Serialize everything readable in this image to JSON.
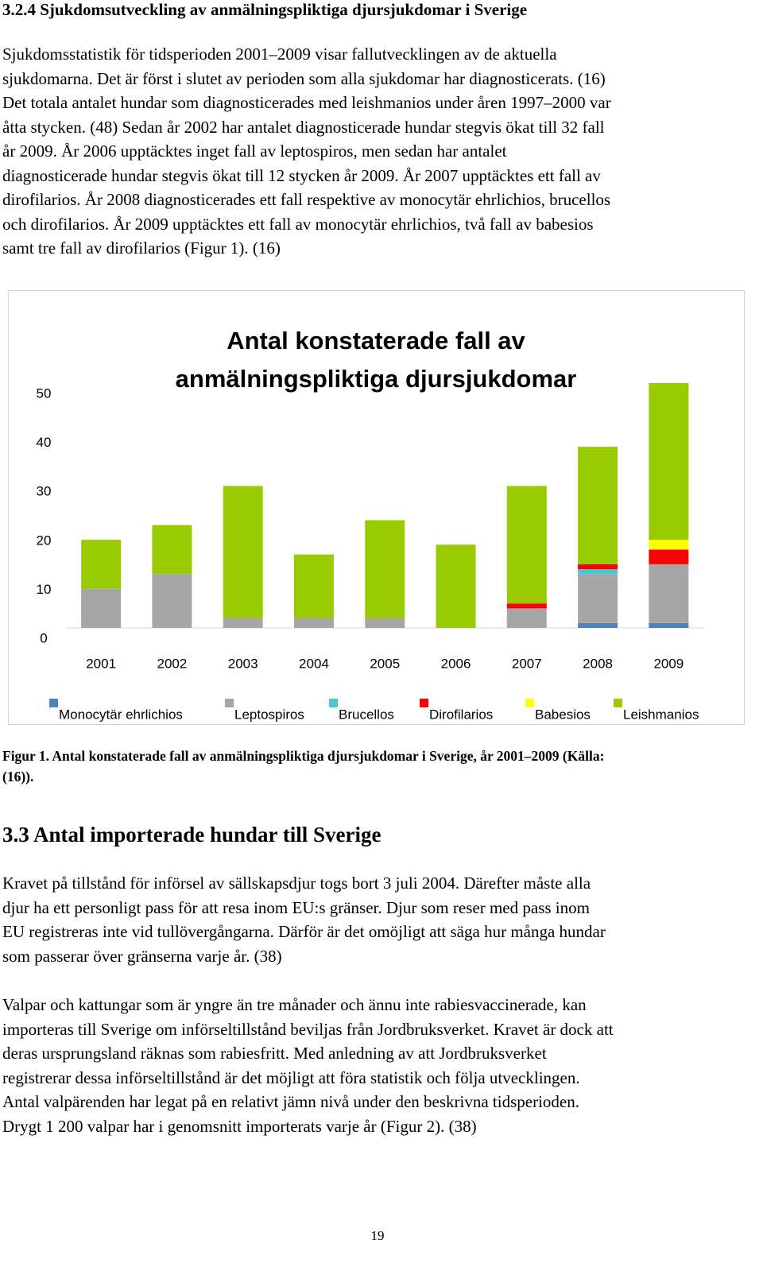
{
  "heading": "3.2.4 Sjukdomsutveckling av anmälningspliktiga djursjukdomar i Sverige",
  "paragraphs": [
    {
      "lines": [
        "Sjukdomsstatistik för tidsperioden 2001–2009 visar fallutvecklingen av de aktuella",
        "sjukdomarna. Det är först i slutet av perioden som alla sjukdomar har diagnosticerats. (16)",
        "Det totala antalet hundar som diagnosticerades med leishmanios under åren 1997–2000 var",
        "åtta stycken. (48) Sedan år 2002 har antalet diagnosticerade hundar stegvis ökat till 32 fall",
        "år 2009. År 2006 upptäcktes inget fall av leptospiros, men sedan har antalet",
        "diagnosticerade hundar stegvis ökat till 12 stycken år 2009. År 2007 upptäcktes ett fall av",
        "dirofilarios. År 2008 diagnosticerades ett fall respektive av monocytär ehrlichios, brucellos",
        "och dirofilarios. År 2009 upptäcktes ett fall av monocytär ehrlichios, två fall av babesios",
        "samt tre fall av dirofilarios (Figur 1). (16)"
      ]
    },
    {
      "lines": [
        "Kravet på tillstånd för införsel av sällskapsdjur togs bort 3 juli 2004. Därefter måste alla",
        "djur ha ett personligt pass för att resa inom EU:s gränser. Djur som reser med pass inom",
        "EU registreras inte vid tullövergångarna. Därför är det omöjligt att säga hur många hundar",
        "som passerar över gränserna varje år. (38)"
      ]
    },
    {
      "lines": [
        "Valpar och kattungar som är yngre än tre månader och ännu inte rabiesvaccinerade, kan",
        "importeras till Sverige om införseltillstånd beviljas från Jordbruksverket. Kravet är dock att",
        "deras ursprungsland räknas som rabiesfritt. Med anledning av att Jordbruksverket",
        "registrerar dessa införseltillstånd är det möjligt att föra statistik och följa utvecklingen.",
        "Antal valpärenden har legat på en relativt jämn nivå under den beskrivna tidsperioden.",
        "Drygt 1 200 valpar har i genomsnitt importerats varje år (Figur 2). (38)"
      ]
    }
  ],
  "caption": {
    "lines": [
      "Figur 1. Antal konstaterade fall av anmälningspliktiga djursjukdomar i Sverige, år 2001–2009 (Källa:",
      "(16))."
    ]
  },
  "heading2": "3.3 Antal importerade hundar till Sverige",
  "page_number": "19",
  "chart_data": {
    "type": "stacked_bar",
    "title": "Antal konstaterade fall av anmälningspliktiga djursjukdomar",
    "categories": [
      "2001",
      "2002",
      "2003",
      "2004",
      "2005",
      "2006",
      "2007",
      "2008",
      "2009"
    ],
    "series": [
      {
        "name": "Monocytär ehrlichios",
        "color": "#4f81bd",
        "values": [
          0,
          0,
          0,
          0,
          0,
          0,
          0,
          1,
          1
        ]
      },
      {
        "name": "Leptospiros",
        "color": "#a6a6a6",
        "values": [
          8,
          11,
          2,
          2,
          2,
          0,
          4,
          10,
          12
        ]
      },
      {
        "name": "Brucellos",
        "color": "#4bc6d0",
        "values": [
          0,
          0,
          0,
          0,
          0,
          0,
          0,
          1,
          0
        ]
      },
      {
        "name": "Dirofilarios",
        "color": "#ff0000",
        "values": [
          0,
          0,
          0,
          0,
          0,
          0,
          1,
          1,
          3
        ]
      },
      {
        "name": "Babesios",
        "color": "#ffff00",
        "values": [
          0,
          0,
          0,
          0,
          0,
          0,
          0,
          0,
          2
        ]
      },
      {
        "name": "Leishmanios",
        "color": "#99cc00",
        "values": [
          10,
          10,
          27,
          13,
          20,
          17,
          24,
          24,
          32
        ]
      }
    ],
    "ylim": [
      0,
      50
    ],
    "yticks": [
      0,
      10,
      20,
      30,
      40,
      50
    ],
    "grid": false,
    "legend": "bottom"
  }
}
